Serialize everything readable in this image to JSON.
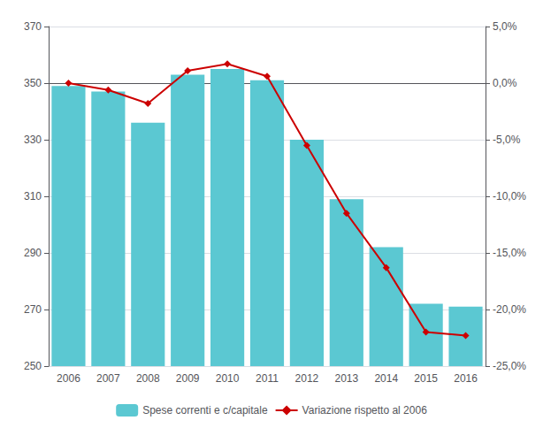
{
  "chart_data": {
    "type": "bar",
    "categories": [
      "2006",
      "2007",
      "2008",
      "2009",
      "2010",
      "2011",
      "2012",
      "2013",
      "2014",
      "2015",
      "2016"
    ],
    "series": [
      {
        "name": "Spese correnti e c/capitale",
        "type": "bar",
        "color": "#5BC8D2",
        "values": [
          349.0,
          347.0,
          336.0,
          353.0,
          355.0,
          351.0,
          330.0,
          309.0,
          292.0,
          272.0,
          271.0
        ]
      },
      {
        "name": "Variazione rispetto al 2006",
        "type": "line",
        "color": "#CC0000",
        "marker": "diamond",
        "axis": "y2",
        "values": [
          0.0,
          -0.6,
          -1.8,
          1.1,
          1.7,
          0.6,
          -5.5,
          -11.5,
          -16.3,
          -22.0,
          -22.3
        ]
      }
    ],
    "ylim": [
      250,
      370
    ],
    "yticks": [
      250,
      270,
      290,
      310,
      330,
      350,
      370
    ],
    "y2lim": [
      -25.0,
      5.0
    ],
    "y2ticks": [
      {
        "value": -25.0,
        "label": "-25,0%"
      },
      {
        "value": -20.0,
        "label": "-20,0%"
      },
      {
        "value": -15.0,
        "label": "-15,0%"
      },
      {
        "value": -10.0,
        "label": "-10,0%"
      },
      {
        "value": -5.0,
        "label": "-5,0%"
      },
      {
        "value": 0.0,
        "label": "0,0%"
      },
      {
        "value": 5.0,
        "label": "5,0%"
      }
    ],
    "grid": true,
    "legend": "bottom"
  }
}
